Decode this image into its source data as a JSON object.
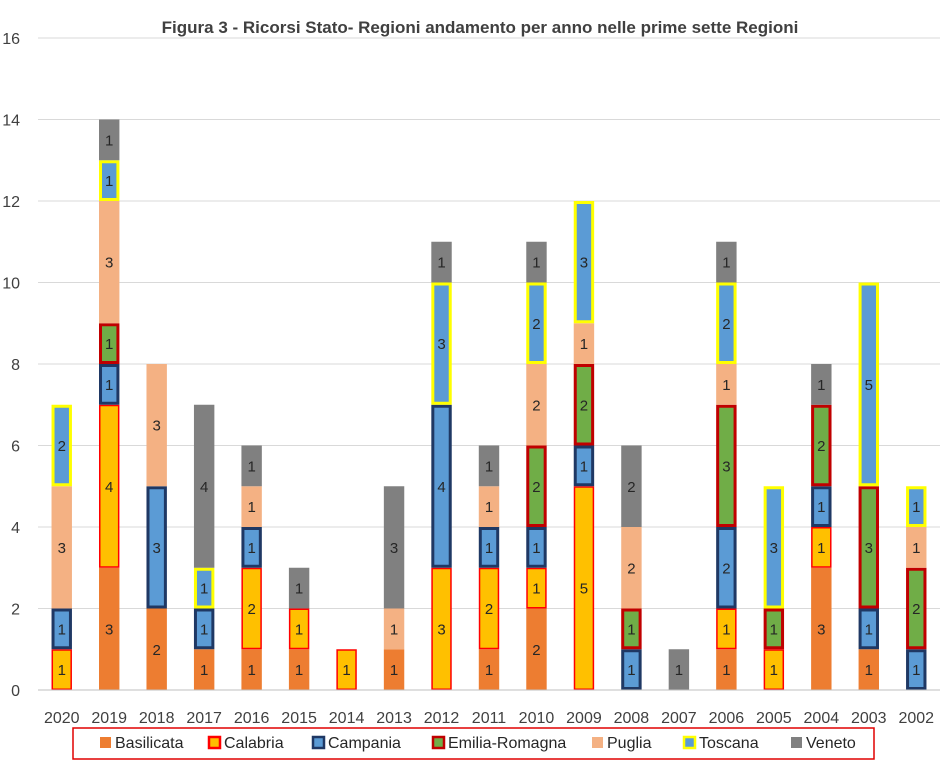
{
  "chart_data": {
    "type": "bar",
    "stacked": true,
    "title": "Figura 3 - Ricorsi Stato- Regioni andamento per anno nelle prime sette Regioni",
    "xlabel": "",
    "ylabel": "",
    "ylim": [
      0,
      16
    ],
    "yticks": [
      0,
      2,
      4,
      6,
      8,
      10,
      12,
      14,
      16
    ],
    "grid": true,
    "legend_position": "bottom",
    "categories": [
      "2020",
      "2019",
      "2018",
      "2017",
      "2016",
      "2015",
      "2014",
      "2013",
      "2012",
      "2011",
      "2010",
      "2009",
      "2008",
      "2007",
      "2006",
      "2005",
      "2004",
      "2003",
      "2002"
    ],
    "series": [
      {
        "name": "Basilicata",
        "color": "#ED7D31",
        "border": "#ED7D31",
        "values": [
          0,
          3,
          2,
          1,
          1,
          1,
          0,
          1,
          0,
          1,
          2,
          0,
          0,
          0,
          1,
          0,
          3,
          1,
          0
        ]
      },
      {
        "name": "Calabria",
        "color": "#FFC000",
        "border": "#FF0000",
        "values": [
          1,
          4,
          0,
          0,
          2,
          1,
          1,
          0,
          3,
          2,
          1,
          5,
          0,
          0,
          1,
          1,
          1,
          0,
          0
        ]
      },
      {
        "name": "Campania",
        "color": "#5B9BD5",
        "border": "#1F3864",
        "values": [
          1,
          1,
          3,
          1,
          1,
          0,
          0,
          0,
          4,
          1,
          1,
          1,
          1,
          0,
          2,
          0,
          1,
          1,
          1
        ]
      },
      {
        "name": "Emilia-Romagna",
        "color": "#70AD47",
        "border": "#C00000",
        "values": [
          0,
          1,
          0,
          0,
          0,
          0,
          0,
          0,
          0,
          0,
          2,
          2,
          1,
          0,
          3,
          1,
          2,
          3,
          2
        ]
      },
      {
        "name": "Puglia",
        "color": "#F4B183",
        "border": "#F4B183",
        "values": [
          3,
          3,
          3,
          0,
          1,
          0,
          0,
          1,
          0,
          1,
          2,
          1,
          2,
          0,
          1,
          0,
          0,
          0,
          1
        ]
      },
      {
        "name": "Toscana",
        "color": "#5B9BD5",
        "border": "#FFFF00",
        "values": [
          2,
          1,
          0,
          1,
          0,
          0,
          0,
          0,
          3,
          0,
          2,
          3,
          0,
          0,
          2,
          3,
          0,
          5,
          1
        ]
      },
      {
        "name": "Veneto",
        "color": "#808080",
        "border": "#808080",
        "values": [
          0,
          1,
          0,
          4,
          1,
          1,
          0,
          3,
          1,
          1,
          1,
          0,
          2,
          1,
          1,
          0,
          1,
          0,
          0
        ]
      }
    ]
  }
}
